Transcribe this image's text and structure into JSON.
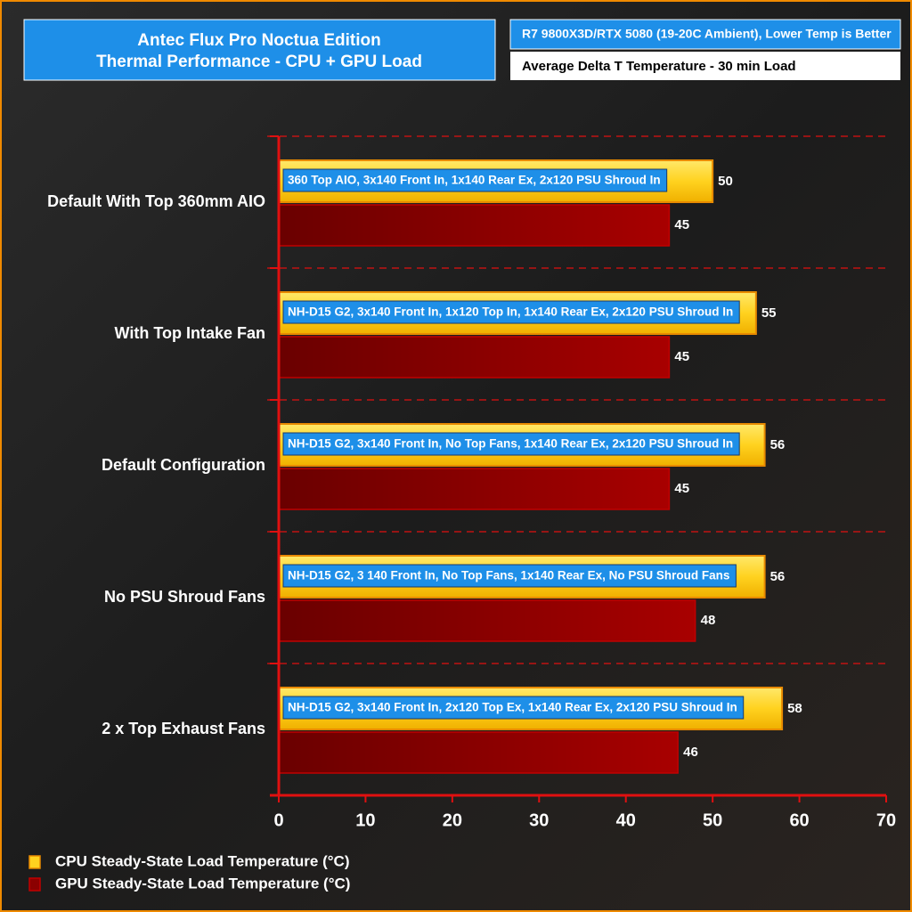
{
  "chart_data": {
    "type": "hbar",
    "title": [
      "Antec Flux Pro Noctua Edition",
      "Thermal Performance - CPU + GPU Load"
    ],
    "subtitle": "R7 9800X3D/RTX 5080 (19-20C Ambient), Lower Temp is Better",
    "metric": "Average Delta T Temperature - 30 min Load",
    "categories": [
      "Default With Top 360mm AIO",
      "With Top Intake Fan",
      "Default Configuration",
      "No PSU Shroud Fans",
      "2 x Top Exhaust Fans"
    ],
    "annotations": [
      "360 Top AIO, 3x140 Front  In, 1x140 Rear Ex, 2x120 PSU Shroud In",
      "NH-D15 G2, 3x140 Front  In, 1x120 Top In, 1x140 Rear Ex, 2x120 PSU Shroud In",
      "NH-D15 G2, 3x140 Front  In, No Top Fans, 1x140 Rear Ex, 2x120 PSU Shroud In",
      "NH-D15 G2, 3 140 Front  In, No Top Fans, 1x140 Rear Ex, No PSU Shroud Fans",
      "NH-D15 G2, 3x140 Front  In, 2x120 Top Ex, 1x140 Rear Ex, 2x120 PSU Shroud In"
    ],
    "series": [
      {
        "name": "CPU Steady-State Load Temperature (°C)",
        "color": "#ffd21f",
        "values": [
          50,
          55,
          56,
          56,
          58
        ]
      },
      {
        "name": "GPU Steady-State Load Temperature (°C)",
        "color": "#8b0000",
        "values": [
          45,
          45,
          45,
          48,
          46
        ]
      }
    ],
    "xlim": [
      0,
      70
    ],
    "xticks": [
      0,
      10,
      20,
      30,
      40,
      50,
      60,
      70
    ]
  }
}
